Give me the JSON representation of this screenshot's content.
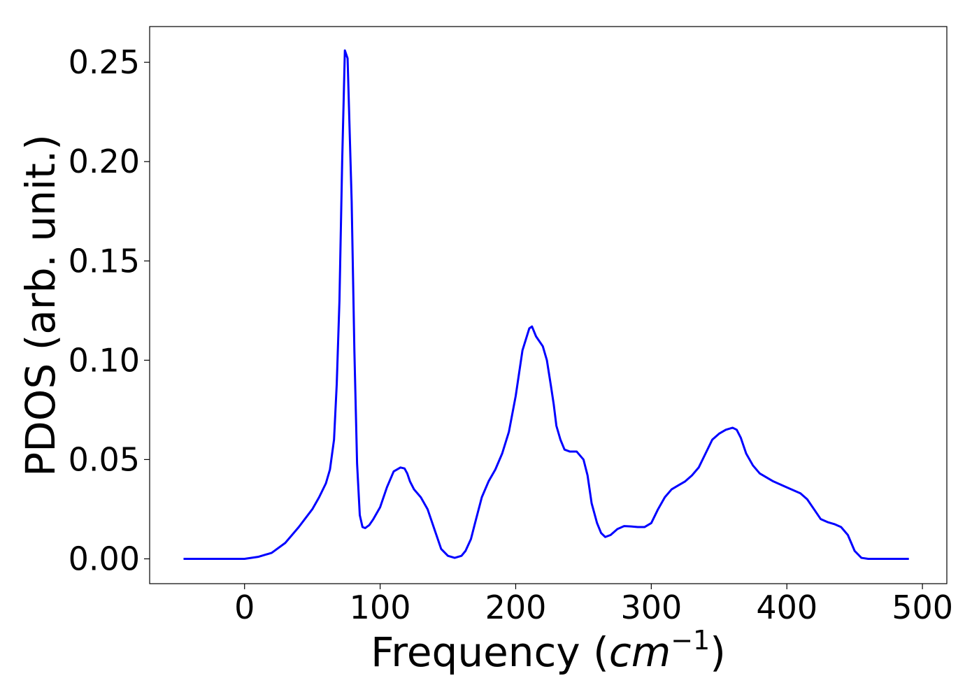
{
  "chart_data": {
    "type": "line",
    "title": "",
    "xlabel_prefix": "Frequency (",
    "xlabel_unit": "cm",
    "xlabel_exponent": "−1",
    "xlabel_suffix": ")",
    "ylabel": "PDOS (arb. unit.)",
    "xlim": [
      -70,
      518
    ],
    "ylim": [
      -0.0125,
      0.268
    ],
    "xticks": [
      0,
      100,
      200,
      300,
      400,
      500
    ],
    "xtick_labels": [
      "0",
      "100",
      "200",
      "300",
      "400",
      "500"
    ],
    "yticks": [
      0.0,
      0.05,
      0.1,
      0.15,
      0.2,
      0.25
    ],
    "ytick_labels": [
      "0.00",
      "0.05",
      "0.10",
      "0.15",
      "0.20",
      "0.25"
    ],
    "grid": false,
    "series": [
      {
        "color": "#0000ff",
        "x": [
          -45,
          -20,
          0,
          10,
          20,
          30,
          40,
          50,
          55,
          60,
          63,
          66,
          68,
          70,
          72,
          74,
          76,
          79,
          81,
          83,
          85,
          87,
          89,
          92,
          95,
          100,
          105,
          110,
          115,
          118,
          120,
          122,
          125,
          130,
          135,
          140,
          145,
          150,
          155,
          160,
          163,
          167,
          170,
          175,
          180,
          185,
          190,
          195,
          200,
          205,
          210,
          212,
          215,
          220,
          223,
          226,
          228,
          230,
          233,
          236,
          240,
          245,
          250,
          253,
          256,
          260,
          263,
          266,
          270,
          275,
          280,
          285,
          290,
          295,
          300,
          305,
          310,
          315,
          320,
          325,
          330,
          335,
          340,
          345,
          350,
          355,
          360,
          363,
          366,
          370,
          375,
          380,
          390,
          400,
          410,
          415,
          420,
          425,
          430,
          435,
          440,
          445,
          450,
          455,
          460,
          470,
          490
        ],
        "y": [
          0.0,
          0.0,
          0.0,
          0.001,
          0.003,
          0.008,
          0.016,
          0.025,
          0.031,
          0.038,
          0.045,
          0.06,
          0.088,
          0.13,
          0.2,
          0.256,
          0.252,
          0.18,
          0.105,
          0.048,
          0.022,
          0.016,
          0.0155,
          0.017,
          0.02,
          0.026,
          0.036,
          0.044,
          0.046,
          0.0455,
          0.043,
          0.039,
          0.035,
          0.031,
          0.025,
          0.015,
          0.005,
          0.0015,
          0.0005,
          0.0015,
          0.004,
          0.01,
          0.018,
          0.031,
          0.039,
          0.045,
          0.053,
          0.064,
          0.082,
          0.105,
          0.116,
          0.117,
          0.112,
          0.107,
          0.1,
          0.087,
          0.078,
          0.067,
          0.06,
          0.055,
          0.054,
          0.054,
          0.05,
          0.042,
          0.028,
          0.018,
          0.013,
          0.011,
          0.012,
          0.015,
          0.0165,
          0.0163,
          0.016,
          0.016,
          0.018,
          0.025,
          0.031,
          0.035,
          0.037,
          0.039,
          0.042,
          0.046,
          0.053,
          0.06,
          0.063,
          0.065,
          0.066,
          0.065,
          0.061,
          0.053,
          0.047,
          0.043,
          0.039,
          0.036,
          0.033,
          0.03,
          0.025,
          0.02,
          0.0185,
          0.0175,
          0.016,
          0.012,
          0.004,
          0.0005,
          0.0,
          0.0,
          0.0
        ]
      }
    ]
  }
}
